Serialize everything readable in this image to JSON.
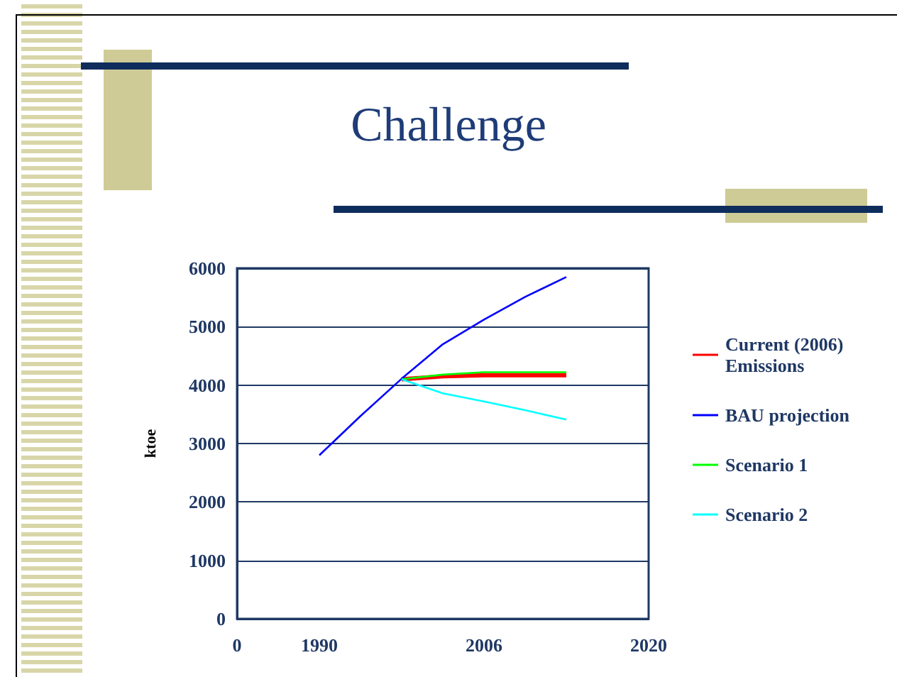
{
  "chart_data": {
    "type": "line",
    "title": "Challenge",
    "ylabel": "ktoe",
    "categories": [
      "0",
      null,
      "1990",
      null,
      null,
      null,
      "2006",
      null,
      null,
      null,
      "2020"
    ],
    "series": [
      {
        "name": "Current (2006)\nEmissions",
        "color": "#ff0000",
        "values": [
          null,
          null,
          null,
          null,
          4100,
          4150,
          4170,
          4170,
          4170,
          null,
          null
        ]
      },
      {
        "name": "BAU projection",
        "color": "#0000ff",
        "values": [
          null,
          null,
          2800,
          3470,
          4110,
          4700,
          5120,
          5510,
          5850,
          null,
          null
        ]
      },
      {
        "name": "Scenario 1",
        "color": "#00ff00",
        "values": [
          null,
          null,
          null,
          null,
          4100,
          4180,
          4220,
          4220,
          4220,
          null,
          null
        ]
      },
      {
        "name": "Scenario 2",
        "color": "#00ffff",
        "values": [
          null,
          null,
          null,
          null,
          4100,
          3860,
          3720,
          3570,
          3410,
          null,
          null
        ]
      }
    ],
    "ylim": [
      0,
      6000
    ],
    "yticks": [
      0,
      1000,
      2000,
      3000,
      4000,
      5000,
      6000
    ],
    "grid": "y",
    "legend": "right",
    "marker": "none",
    "line_style": "solid"
  }
}
